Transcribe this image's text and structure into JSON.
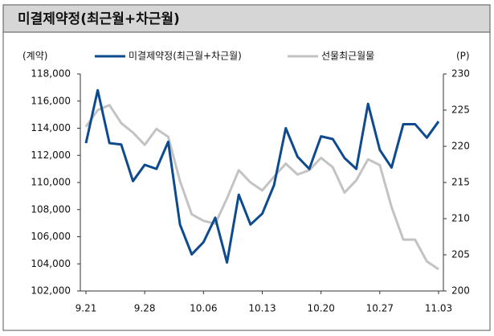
{
  "chart_data": {
    "type": "line",
    "title": "미결제약정(최근월+차근월)",
    "y_label": "(계약)",
    "y2_label": "(P)",
    "categories": [
      "9.21",
      null,
      null,
      null,
      null,
      "9.28",
      null,
      null,
      null,
      null,
      "10.06",
      null,
      null,
      null,
      null,
      "10.13",
      null,
      null,
      null,
      null,
      "10.20",
      null,
      null,
      null,
      null,
      "10.27",
      null,
      null,
      null,
      null,
      "11.03"
    ],
    "series": [
      {
        "name": "미결제약정(최근월+차근월)",
        "color": "#0d4a8e",
        "axis": "y",
        "values": [
          112900,
          116800,
          112900,
          112800,
          110100,
          111300,
          111000,
          113000,
          106900,
          104700,
          105600,
          107400,
          104100,
          109100,
          106900,
          107700,
          109800,
          114000,
          111900,
          111000,
          113400,
          113200,
          111800,
          111000,
          115800,
          112400,
          111100,
          114300,
          114300,
          113300,
          114500
        ]
      },
      {
        "name": "선물최근월물",
        "color": "#c3c3c3",
        "axis": "y2",
        "values": [
          222.7,
          225.0,
          225.7,
          223.2,
          221.9,
          220.2,
          222.4,
          221.3,
          215.2,
          210.6,
          209.7,
          209.3,
          212.8,
          216.7,
          215.0,
          213.9,
          215.8,
          217.6,
          216.1,
          216.7,
          218.4,
          217.1,
          213.6,
          215.3,
          218.2,
          217.4,
          211.6,
          207.1,
          207.1,
          204.1,
          203.0
        ]
      }
    ],
    "ylim": [
      102000,
      118000
    ],
    "yticks": [
      {
        "value": 102000,
        "label": "102,000"
      },
      {
        "value": 104000,
        "label": "104,000"
      },
      {
        "value": 106000,
        "label": "106,000"
      },
      {
        "value": 108000,
        "label": "108,000"
      },
      {
        "value": 110000,
        "label": "110,000"
      },
      {
        "value": 112000,
        "label": "112,000"
      },
      {
        "value": 114000,
        "label": "114,000"
      },
      {
        "value": 116000,
        "label": "116,000"
      },
      {
        "value": 118000,
        "label": "118,000"
      }
    ],
    "y2lim": [
      200,
      230
    ],
    "y2ticks": [
      200,
      205,
      210,
      215,
      220,
      225,
      230
    ]
  }
}
